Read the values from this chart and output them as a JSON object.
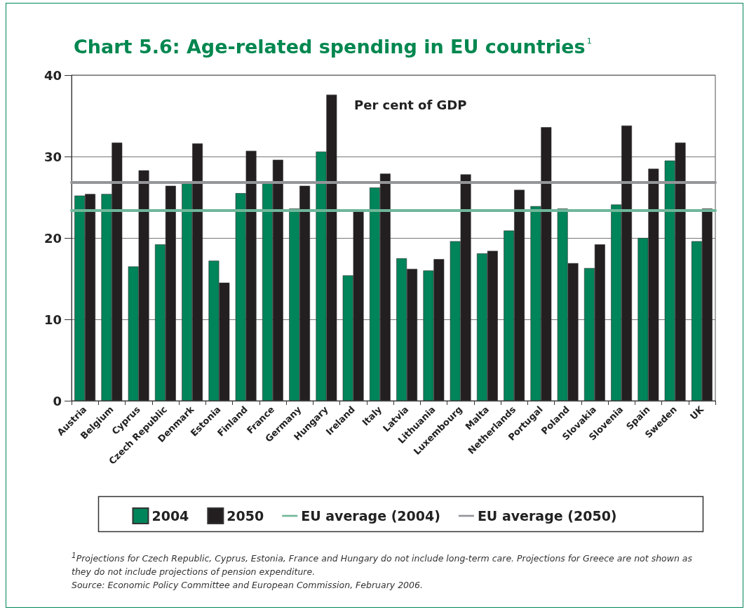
{
  "chart_data": {
    "type": "bar",
    "title": "Chart 5.6: Age-related spending in EU countries$^{1}$",
    "ylabel": "Per cent of GDP",
    "categories": [
      "Austria",
      "Belgium",
      "Cyprus",
      "Czech Republic",
      "Denmark",
      "Estonia",
      "Finland",
      "France",
      "Germany",
      "Hungary",
      "Ireland",
      "Italy",
      "Latvia",
      "Lithuania",
      "Luxembourg",
      "Malta",
      "Netherlands",
      "Portugal",
      "Poland",
      "Slovakia",
      "Slovenia",
      "Spain",
      "Sweden",
      "UK"
    ],
    "series": [
      {
        "name": "2004",
        "color": "#00845a",
        "values": [
          25.2,
          25.4,
          16.5,
          19.2,
          26.8,
          17.2,
          25.5,
          26.8,
          23.6,
          30.6,
          15.4,
          26.2,
          17.5,
          16.0,
          19.6,
          18.1,
          20.9,
          23.9,
          23.6,
          16.3,
          24.1,
          20.0,
          29.5,
          19.6
        ]
      },
      {
        "name": "2050",
        "color": "#231f20",
        "values": [
          25.4,
          31.7,
          28.3,
          26.4,
          31.6,
          14.5,
          30.7,
          29.6,
          26.4,
          37.6,
          23.4,
          27.9,
          16.2,
          17.4,
          27.8,
          18.4,
          25.9,
          33.6,
          16.9,
          19.2,
          33.8,
          28.5,
          31.7,
          23.6
        ]
      }
    ],
    "ref_lines": [
      {
        "axis": "y",
        "value": 23.4,
        "label": "EU average (2004)",
        "color": "#6fb79a"
      },
      {
        "axis": "y",
        "value": 26.8,
        "label": "EU average (2050)",
        "color": "#939598"
      }
    ],
    "ylim": [
      0,
      40
    ],
    "yticks": [
      0,
      10,
      20,
      30,
      40
    ],
    "grid": "y",
    "legend": "bottom",
    "annotations": [
      "$^{1}$Projections for Czech Republic, Cyprus, Estonia, France and Hungary do not include long-term care. Projections for Greece are not shown as they do not include projections of pension expenditure.",
      "Source: Economic Policy Committee and European Commission, February 2006."
    ]
  }
}
